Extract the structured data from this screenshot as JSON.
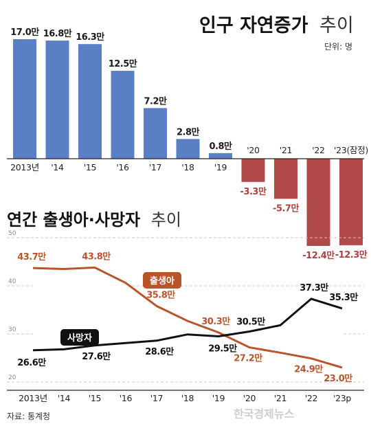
{
  "header": {
    "title_bold": "인구 자연증가",
    "title_light": "추이",
    "unit": "단위: 명"
  },
  "section2": {
    "title_bold": "연간 출생아·사망자",
    "title_light": "추이"
  },
  "footer": {
    "source": "자료: 통계청",
    "watermark": "한국경제뉴스"
  },
  "colors": {
    "bar_positive": "#5b7fc4",
    "bar_negative": "#b14a48",
    "birth_line": "#b8552b",
    "death_line": "#111111"
  },
  "chart_data": [
    {
      "type": "bar",
      "categories": [
        "2013년",
        "'14",
        "'15",
        "'16",
        "'17",
        "'18",
        "'19",
        "'20",
        "'21",
        "'22",
        "'23(잠정)"
      ],
      "values": [
        17.0,
        16.8,
        16.3,
        12.5,
        7.2,
        2.8,
        0.8,
        -3.3,
        -5.7,
        -12.4,
        -12.3
      ],
      "data_labels": [
        "17.0만",
        "16.8만",
        "16.3만",
        "12.5만",
        "7.2만",
        "2.8만",
        "0.8만",
        "-3.3만",
        "-5.7만",
        "-12.4만",
        "-12.3만"
      ],
      "unit": "만 명",
      "ylim": [
        -12.4,
        17.0
      ]
    },
    {
      "type": "line",
      "x": [
        "2013년",
        "'14",
        "'15",
        "'16",
        "'17",
        "'18",
        "'19",
        "'20",
        "'21",
        "'22",
        "'23p"
      ],
      "series": [
        {
          "name": "출생아",
          "values": [
            43.7,
            43.5,
            43.8,
            40.6,
            35.8,
            32.7,
            30.3,
            27.2,
            26.1,
            24.9,
            23.0
          ],
          "labels": [
            "43.7만",
            "",
            "43.8만",
            "",
            "35.8만",
            "",
            "30.3만",
            "27.2만",
            "",
            "24.9만",
            "23.0만"
          ]
        },
        {
          "name": "사망자",
          "values": [
            26.6,
            26.8,
            27.6,
            28.1,
            28.6,
            29.9,
            29.5,
            30.5,
            31.8,
            37.3,
            35.3
          ],
          "labels": [
            "26.6만",
            "",
            "27.6만",
            "",
            "28.6만",
            "",
            "29.5만",
            "30.5만",
            "",
            "37.3만",
            "35.3만"
          ]
        }
      ],
      "yticks": [
        "20",
        "30",
        "40",
        "50"
      ],
      "ylim": [
        20,
        50
      ],
      "grid": true
    }
  ]
}
